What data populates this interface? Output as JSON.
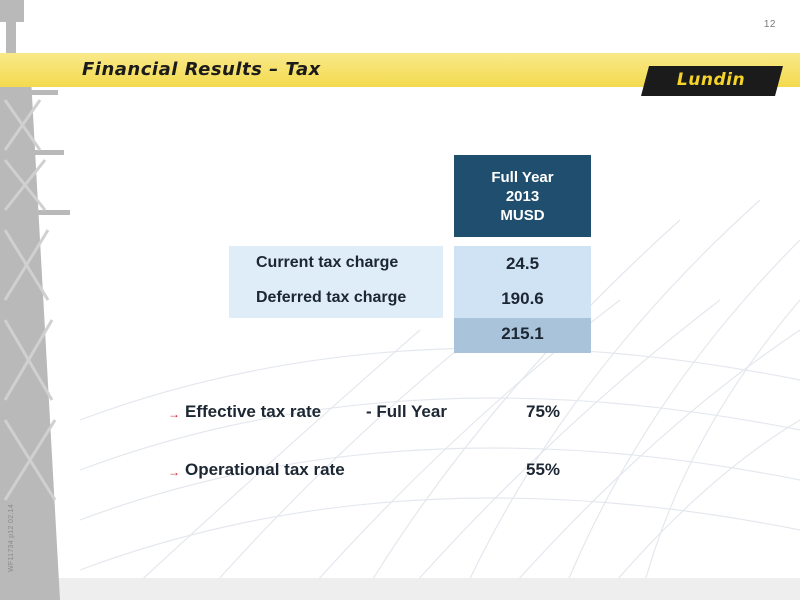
{
  "page_number": "12",
  "title": "Financial Results – Tax",
  "logo_text": "Lundin",
  "table": {
    "header_lines": [
      "Full Year",
      "2013",
      "MUSD"
    ],
    "rows": [
      {
        "label": "Current tax charge",
        "value": "24.5"
      },
      {
        "label": "Deferred tax charge",
        "value": "190.6"
      }
    ],
    "total": "215.1"
  },
  "bullets": [
    {
      "label": "Effective tax rate",
      "qualifier": "- Full Year",
      "value": "75%"
    },
    {
      "label": "Operational tax rate",
      "qualifier": "",
      "value": "55%"
    }
  ],
  "bullet_icon": "arrow-right-icon",
  "side_code": "WF11734 p12 02.14",
  "colors": {
    "title_band": "#f3da4d",
    "header_bg": "#1f4e6e",
    "label_bg": "#deedf8",
    "value_bg": "#cfe3f4",
    "total_bg": "#a9c3db",
    "bullet_arrow": "#c2272d",
    "logo_yellow": "#f4d32a"
  }
}
